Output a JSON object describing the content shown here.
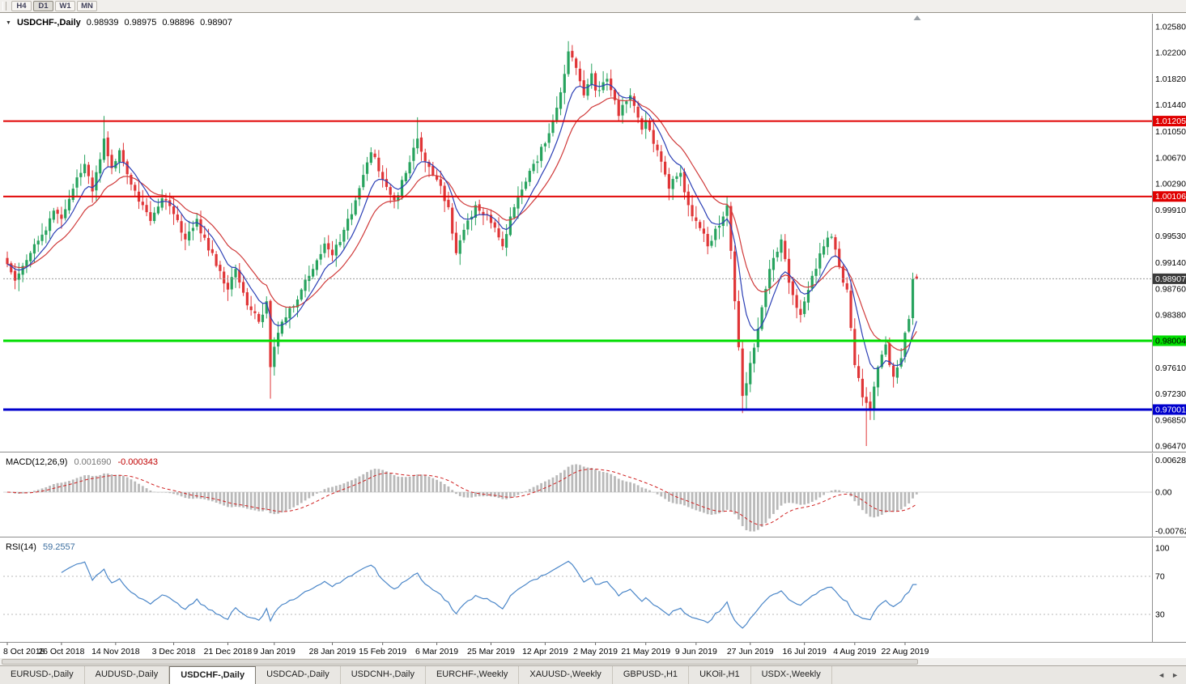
{
  "toolbar": {
    "buttons": [
      {
        "label": "H4"
      },
      {
        "label": "D1"
      },
      {
        "label": "W1"
      },
      {
        "label": "MN"
      }
    ]
  },
  "icons": {
    "dropdown": "▼",
    "tab_left": "◄",
    "tab_right": "►"
  },
  "chart": {
    "title": {
      "symbol": "USDCHF-,Daily",
      "open": "0.98939",
      "high": "0.98975",
      "low": "0.98896",
      "close": "0.98907"
    },
    "macd_label": {
      "name": "MACD(12,26,9)",
      "main": "0.001690",
      "signal": "-0.000343"
    },
    "rsi_label": {
      "name": "RSI(14)",
      "value": "59.2557"
    }
  },
  "chart_data": {
    "type": "candlestick",
    "symbol": "USDCHF",
    "timeframe": "Daily",
    "bars": 236,
    "render_seed": 11,
    "candle_up": "#27a35e",
    "candle_down": "#e03537",
    "price_axis": {
      "min": 0.9647,
      "max": 1.0258,
      "labels": [
        "1.02580",
        "1.02200",
        "1.01820",
        "1.01440",
        "1.01050",
        "1.00670",
        "1.00290",
        "0.99910",
        "0.99530",
        "0.99140",
        "0.98760",
        "0.98380",
        "0.97610",
        "0.97230",
        "0.96850",
        "0.96470"
      ]
    },
    "close_anchors": [
      [
        0,
        0.9912
      ],
      [
        2,
        0.9888
      ],
      [
        5,
        0.9918
      ],
      [
        9,
        0.9955
      ],
      [
        12,
        0.999
      ],
      [
        14,
        0.9978
      ],
      [
        17,
        1.0022
      ],
      [
        20,
        1.0058
      ],
      [
        22,
        1.0018
      ],
      [
        25,
        1.0095
      ],
      [
        27,
        1.0052
      ],
      [
        29,
        1.0078
      ],
      [
        32,
        1.0028
      ],
      [
        35,
        0.9998
      ],
      [
        37,
        0.9975
      ],
      [
        40,
        1.0008
      ],
      [
        43,
        0.9985
      ],
      [
        46,
        0.9948
      ],
      [
        49,
        0.9978
      ],
      [
        52,
        0.9932
      ],
      [
        55,
        0.9902
      ],
      [
        57,
        0.9875
      ],
      [
        59,
        0.9905
      ],
      [
        62,
        0.9852
      ],
      [
        65,
        0.9828
      ],
      [
        67,
        0.9858
      ],
      [
        68,
        0.9762
      ],
      [
        70,
        0.9812
      ],
      [
        73,
        0.9848
      ],
      [
        76,
        0.9875
      ],
      [
        79,
        0.9905
      ],
      [
        82,
        0.9942
      ],
      [
        84,
        0.9925
      ],
      [
        87,
        0.9962
      ],
      [
        90,
        1.0005
      ],
      [
        92,
        1.0042
      ],
      [
        94,
        1.0075
      ],
      [
        97,
        1.0035
      ],
      [
        100,
        1.0005
      ],
      [
        103,
        1.0045
      ],
      [
        106,
        1.0095
      ],
      [
        108,
        1.0062
      ],
      [
        111,
        1.0035
      ],
      [
        114,
        0.9995
      ],
      [
        116,
        0.9928
      ],
      [
        118,
        0.9962
      ],
      [
        121,
        0.9998
      ],
      [
        125,
        0.9972
      ],
      [
        128,
        0.9938
      ],
      [
        131,
        0.9995
      ],
      [
        135,
        1.0048
      ],
      [
        139,
        1.0088
      ],
      [
        142,
        1.014
      ],
      [
        145,
        1.0222
      ],
      [
        147,
        1.0198
      ],
      [
        149,
        1.0158
      ],
      [
        151,
        1.019
      ],
      [
        152,
        1.0165
      ],
      [
        155,
        1.0182
      ],
      [
        158,
        1.0128
      ],
      [
        161,
        1.0158
      ],
      [
        164,
        1.0108
      ],
      [
        165,
        1.0122
      ],
      [
        168,
        1.0078
      ],
      [
        171,
        1.0022
      ],
      [
        174,
        1.0045
      ],
      [
        176,
        0.9998
      ],
      [
        178,
        0.9975
      ],
      [
        181,
        0.9938
      ],
      [
        184,
        0.9968
      ],
      [
        186,
        0.9998
      ],
      [
        188,
        0.9858
      ],
      [
        190,
        0.972
      ],
      [
        192,
        0.9768
      ],
      [
        194,
        0.9818
      ],
      [
        197,
        0.9905
      ],
      [
        200,
        0.9948
      ],
      [
        202,
        0.9885
      ],
      [
        205,
        0.9838
      ],
      [
        208,
        0.9895
      ],
      [
        211,
        0.9938
      ],
      [
        213,
        0.9952
      ],
      [
        215,
        0.9908
      ],
      [
        217,
        0.9875
      ],
      [
        219,
        0.9765
      ],
      [
        221,
        0.9718
      ],
      [
        223,
        0.97
      ],
      [
        225,
        0.9762
      ],
      [
        227,
        0.9795
      ],
      [
        229,
        0.9748
      ],
      [
        231,
        0.9775
      ],
      [
        232,
        0.9812
      ],
      [
        233,
        0.9832
      ],
      [
        234,
        0.989
      ],
      [
        235,
        0.98907
      ]
    ],
    "wick_overrides": {
      "25": {
        "high": 1.0128
      },
      "68": {
        "low": 0.9716
      },
      "106": {
        "high": 1.0126
      },
      "145": {
        "high": 1.0237
      },
      "146": {
        "high": 1.0226
      },
      "190": {
        "low": 0.9695
      },
      "191": {
        "low": 0.97
      },
      "222": {
        "low": 0.9647
      },
      "223": {
        "low": 0.9685
      }
    },
    "last_bar": {
      "open": 0.98939,
      "high": 0.98975,
      "low": 0.98896,
      "close": 0.98907
    },
    "levels": [
      {
        "value": 1.01205,
        "label": "1.01205",
        "color": "#e00000",
        "text": "#ffffff",
        "width": 2
      },
      {
        "value": 1.00106,
        "label": "1.00106",
        "color": "#e00000",
        "text": "#ffffff",
        "width": 2
      },
      {
        "value": 0.98004,
        "label": "0.98004",
        "color": "#00dd00",
        "text": "#000000",
        "width": 3
      },
      {
        "value": 0.97001,
        "label": "0.97001",
        "color": "#0000cd",
        "text": "#ffffff",
        "width": 3
      }
    ],
    "current_price": {
      "value": 0.98907,
      "label": "0.98907",
      "box": "#3a3a3a",
      "text": "#ffffff"
    },
    "ma_fast": {
      "period": 8,
      "color": "#2b3fb5"
    },
    "ma_slow": {
      "period": 17,
      "color": "#d03a3a"
    },
    "macd": {
      "fast": 12,
      "slow": 26,
      "signal": 9,
      "hist_color": "#b9b9b9",
      "signal_color": "#d02020",
      "scale_labels": [
        {
          "text": "0.006286",
          "value": 0.006286
        },
        {
          "text": "0.00",
          "value": 0
        },
        {
          "text": "-0.00762",
          "value": -0.00762
        }
      ]
    },
    "rsi": {
      "period": 14,
      "color": "#4a86c8",
      "levels": [
        {
          "text": "100",
          "value": 100
        },
        {
          "text": "70",
          "value": 70
        },
        {
          "text": "30",
          "value": 30
        }
      ],
      "guides": [
        70,
        30
      ]
    },
    "date_labels": [
      {
        "text": "8 Oct 2018",
        "index": 0
      },
      {
        "text": "26 Oct 2018",
        "index": 14
      },
      {
        "text": "14 Nov 2018",
        "index": 28
      },
      {
        "text": "3 Dec 2018",
        "index": 43
      },
      {
        "text": "21 Dec 2018",
        "index": 57
      },
      {
        "text": "9 Jan 2019",
        "index": 69
      },
      {
        "text": "28 Jan 2019",
        "index": 84
      },
      {
        "text": "15 Feb 2019",
        "index": 97
      },
      {
        "text": "6 Mar 2019",
        "index": 111
      },
      {
        "text": "25 Mar 2019",
        "index": 125
      },
      {
        "text": "12 Apr 2019",
        "index": 139
      },
      {
        "text": "2 May 2019",
        "index": 152
      },
      {
        "text": "21 May 2019",
        "index": 165
      },
      {
        "text": "9 Jun 2019",
        "index": 178
      },
      {
        "text": "27 Jun 2019",
        "index": 192
      },
      {
        "text": "16 Jul 2019",
        "index": 206
      },
      {
        "text": "4 Aug 2019",
        "index": 219
      },
      {
        "text": "22 Aug 2019",
        "index": 232
      }
    ]
  },
  "tabs": [
    {
      "label": "EURUSD-,Daily"
    },
    {
      "label": "AUDUSD-,Daily"
    },
    {
      "label": "USDCHF-,Daily"
    },
    {
      "label": "USDCAD-,Daily"
    },
    {
      "label": "USDCNH-,Daily"
    },
    {
      "label": "EURCHF-,Weekly"
    },
    {
      "label": "XAUUSD-,Weekly"
    },
    {
      "label": "GBPUSD-,H1"
    },
    {
      "label": "UKOil-,H1"
    },
    {
      "label": "USDX-,Weekly"
    }
  ]
}
